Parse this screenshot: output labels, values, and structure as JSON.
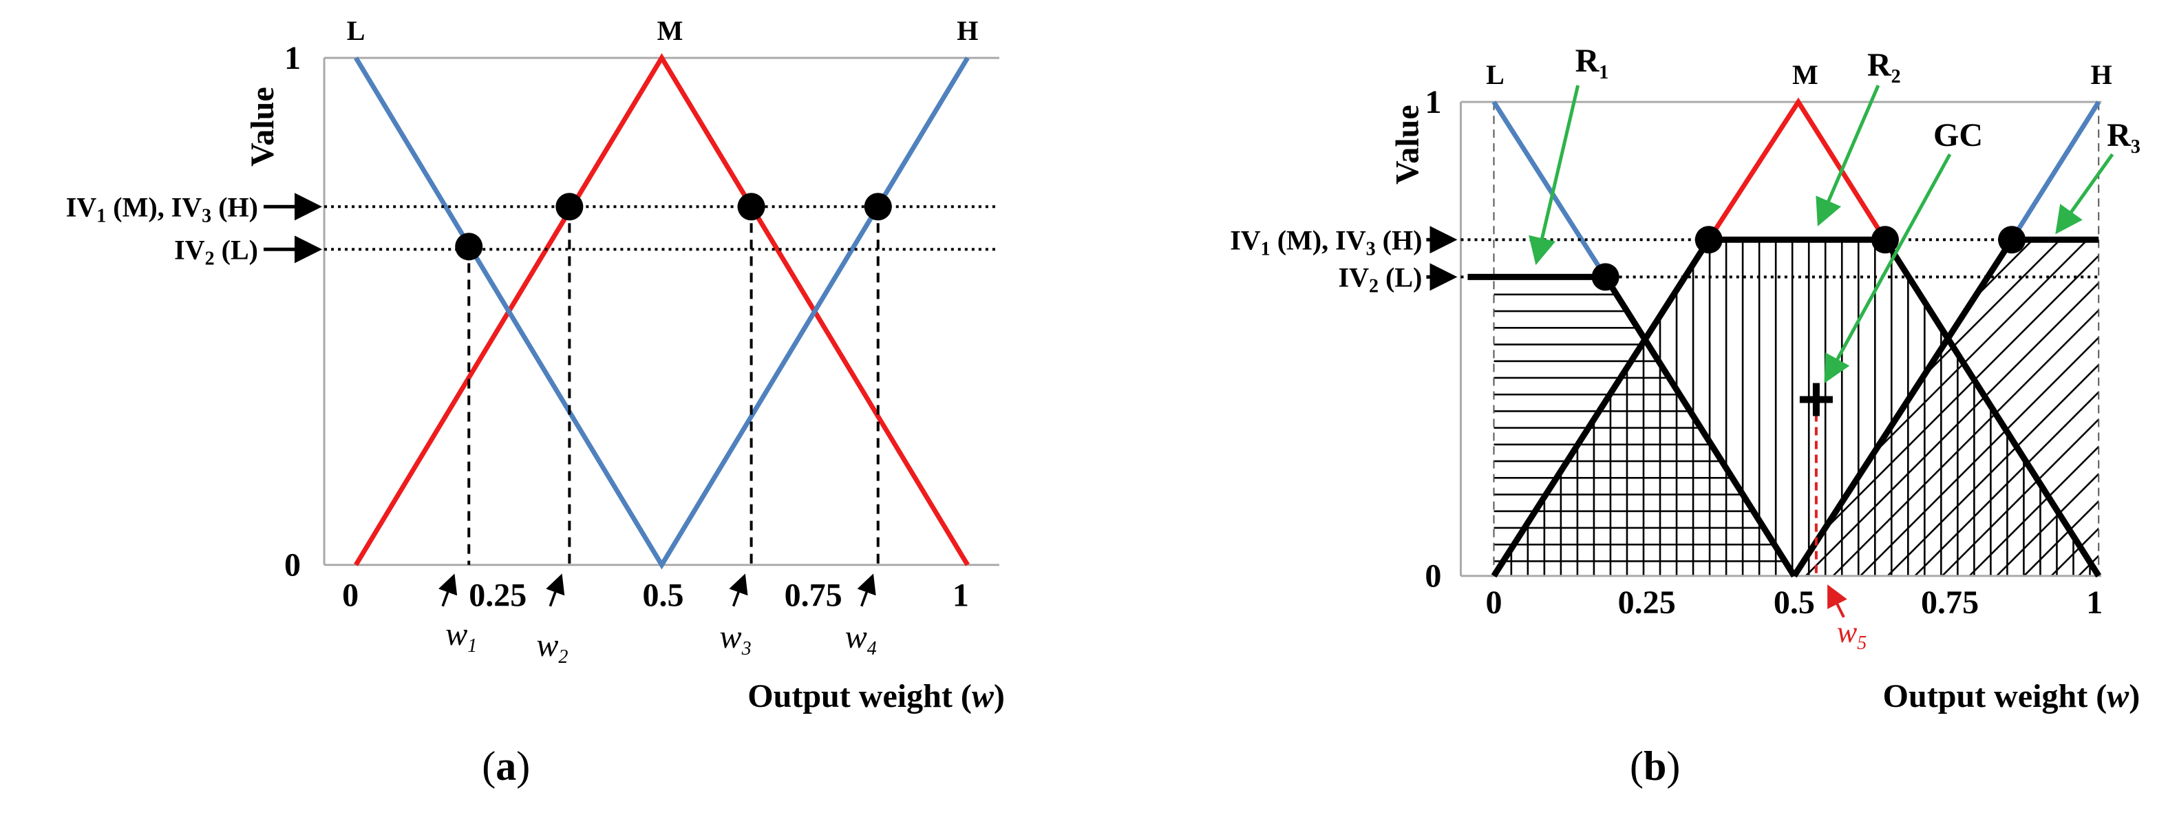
{
  "panel_a": {
    "line_labels": [
      "L",
      "M",
      "H"
    ],
    "y_axis_label": "Value",
    "y_ticks": [
      "1",
      "0"
    ],
    "x_ticks": [
      "0",
      "0.25",
      "0.5",
      "0.75",
      "1"
    ],
    "iv_upper": [
      "IV",
      "1",
      " (M), IV",
      "3",
      " (H)"
    ],
    "iv_lower": [
      "IV",
      "2",
      " (L)"
    ],
    "w_labels": [
      [
        "w",
        "1"
      ],
      [
        "w",
        "2"
      ],
      [
        "w",
        "3"
      ],
      [
        "w",
        "4"
      ]
    ],
    "x_axis_label": [
      "Output weight (",
      "w",
      ")"
    ],
    "caption": [
      "(",
      "a",
      ")"
    ]
  },
  "panel_b": {
    "line_labels": [
      "L",
      "M",
      "H"
    ],
    "y_axis_label": "Value",
    "y_ticks": [
      "1",
      "0"
    ],
    "x_ticks": [
      "0",
      "0.25",
      "0.5",
      "0.75",
      "1"
    ],
    "iv_upper": [
      "IV",
      "1",
      " (M), IV",
      "3",
      " (H)"
    ],
    "iv_lower": [
      "IV",
      "2",
      " (L)"
    ],
    "regions": [
      [
        "R",
        "1"
      ],
      [
        "R",
        "2"
      ],
      [
        "R",
        "3"
      ]
    ],
    "gc": "GC",
    "w5": [
      "w",
      "5"
    ],
    "x_axis_label": [
      "Output weight (",
      "w",
      ")"
    ],
    "caption": [
      "(",
      "b",
      ")"
    ]
  }
}
